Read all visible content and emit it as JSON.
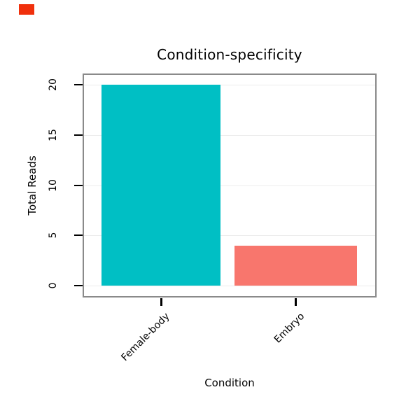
{
  "badge": {
    "color": "#f0300c"
  },
  "chart_data": {
    "type": "bar",
    "title": "Condition-specificity",
    "xlabel": "Condition",
    "ylabel": "Total Reads",
    "categories": [
      "Female-body",
      "Embryo"
    ],
    "values": [
      20,
      4
    ],
    "series": [
      {
        "name": "Female-body",
        "values": [
          20
        ]
      },
      {
        "name": "Embryo",
        "values": [
          4
        ]
      }
    ],
    "bar_colors": [
      "#00BFC4",
      "#F8766D"
    ],
    "yticks": [
      0,
      5,
      10,
      15,
      20
    ],
    "ylim": [
      0,
      20
    ],
    "grid": true,
    "legend": "none",
    "gridline_color": "#ececec",
    "panel_border_color": "#8a8a8a",
    "tick_color": "#000000"
  }
}
